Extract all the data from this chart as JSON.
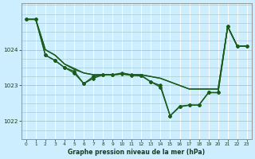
{
  "title": "Graphe pression niveau de la mer (hPa)",
  "background_color": "#cceeff",
  "grid_color_h": "#aacccc",
  "grid_color_v": "#ffffff",
  "line_color": "#1a5c1a",
  "x_ticks": [
    0,
    1,
    2,
    3,
    4,
    5,
    6,
    7,
    8,
    9,
    10,
    11,
    12,
    13,
    14,
    15,
    16,
    17,
    18,
    19,
    20,
    21,
    22,
    23
  ],
  "ylim": [
    1021.5,
    1025.3
  ],
  "yticks": [
    1022,
    1023,
    1024
  ],
  "series": [
    {
      "y": [
        1024.85,
        1024.85,
        1024.0,
        1023.85,
        1023.6,
        1023.45,
        1023.35,
        1023.3,
        1023.3,
        1023.3,
        1023.32,
        1023.3,
        1023.3,
        1023.25,
        1023.2,
        1023.1,
        1023.0,
        1022.9,
        1022.9,
        1022.9,
        1022.9,
        1024.65,
        1024.1,
        1024.1
      ],
      "marker": false,
      "lw": 1.0
    },
    {
      "y": [
        1024.85,
        1024.85,
        1023.85,
        1023.7,
        1023.5,
        1023.35,
        1023.05,
        1023.2,
        1023.3,
        1023.3,
        1023.32,
        1023.28,
        1023.27,
        1023.1,
        1023.0,
        1022.15,
        1022.4,
        1022.45,
        1022.45,
        1022.8,
        1022.8,
        1024.65,
        1024.1,
        1024.1
      ],
      "marker": true,
      "lw": 1.0
    },
    {
      "y": [
        1024.85,
        1024.85,
        1023.85,
        1023.7,
        1023.5,
        1023.4,
        1023.05,
        1023.25,
        1023.3,
        1023.3,
        1023.35,
        1023.3,
        1023.28,
        1023.1,
        1022.95,
        1022.15,
        1022.42,
        1022.45,
        1022.45,
        1022.8,
        1022.8,
        1024.65,
        1024.1,
        1024.1
      ],
      "marker": true,
      "lw": 1.0
    },
    {
      "y": [
        1024.85,
        1024.85,
        1024.0,
        1023.85,
        1023.6,
        1023.48,
        1023.35,
        1023.3,
        1023.3,
        1023.3,
        1023.32,
        1023.3,
        1023.3,
        1023.25,
        1023.2,
        1023.1,
        1023.0,
        1022.9,
        1022.9,
        1022.9,
        1022.9,
        1024.65,
        1024.1,
        1024.1
      ],
      "marker": false,
      "lw": 1.0
    }
  ],
  "figsize": [
    3.2,
    2.0
  ],
  "dpi": 100
}
